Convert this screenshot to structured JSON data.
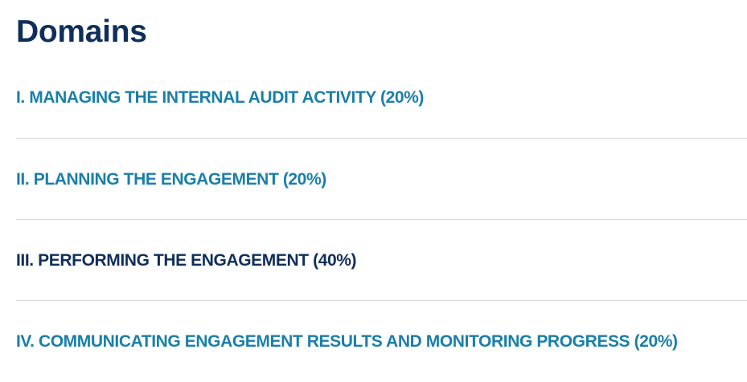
{
  "heading": "Domains",
  "colors": {
    "heading": "#0f2f5a",
    "link": "#1a7fa8",
    "active": "#0f2f5a",
    "divider": "#dcdcdc"
  },
  "domains": [
    {
      "label": "I. MANAGING THE INTERNAL AUDIT ACTIVITY (20%)",
      "state": "link"
    },
    {
      "label": "II. PLANNING THE ENGAGEMENT (20%)",
      "state": "link"
    },
    {
      "label": "III. PERFORMING THE ENGAGEMENT (40%)",
      "state": "active"
    },
    {
      "label": "IV. COMMUNICATING ENGAGEMENT RESULTS AND MONITORING PROGRESS (20%)",
      "state": "link"
    }
  ]
}
